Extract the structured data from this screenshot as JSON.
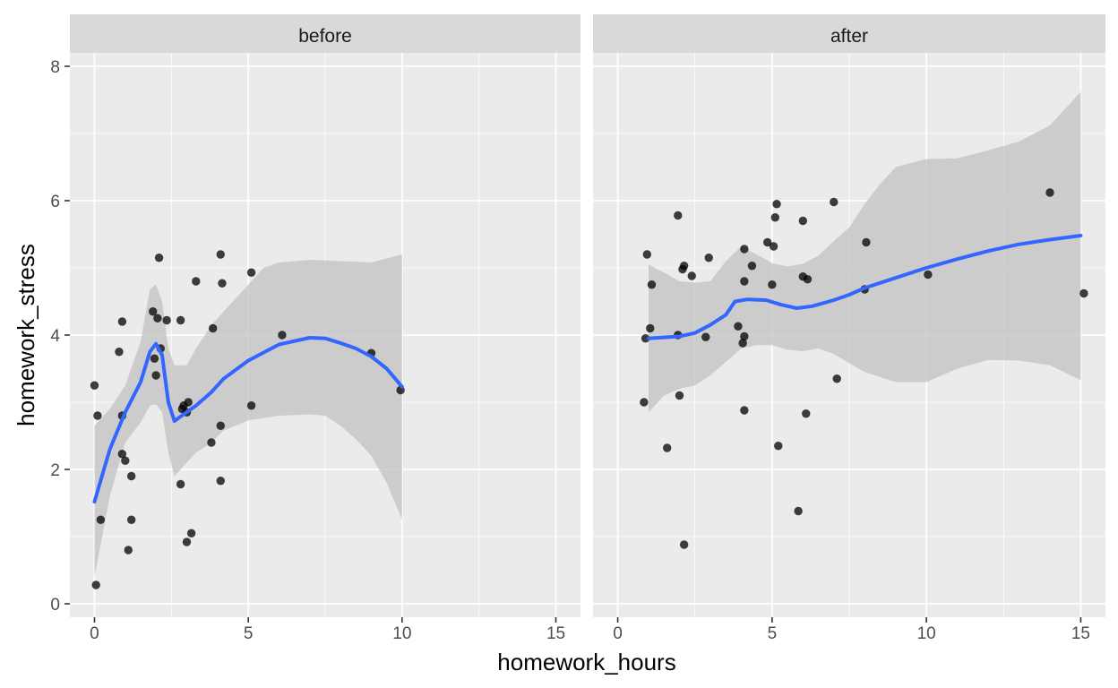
{
  "chart_data": {
    "type": "scatter",
    "xlabel": "homework_hours",
    "ylabel": "homework_stress",
    "xlim": [
      -0.8,
      15.8
    ],
    "ylim": [
      -0.2,
      8.2
    ],
    "x_ticks": [
      0,
      5,
      10,
      15
    ],
    "y_ticks": [
      0,
      2,
      4,
      6,
      8
    ],
    "grid": true,
    "legend": "none",
    "colors": {
      "panel_bg": "#ebebeb",
      "strip_bg": "#d9d9d9",
      "grid": "#ffffff",
      "points": "#000000",
      "smooth_line": "#3366ff",
      "ribbon": "#bfbfbf"
    },
    "panels": [
      {
        "strip": "before",
        "points": [
          {
            "x": 0.0,
            "y": 3.25
          },
          {
            "x": 0.1,
            "y": 2.8
          },
          {
            "x": 0.05,
            "y": 0.28
          },
          {
            "x": 0.2,
            "y": 1.25
          },
          {
            "x": 0.8,
            "y": 3.75
          },
          {
            "x": 0.9,
            "y": 4.2
          },
          {
            "x": 0.9,
            "y": 2.8
          },
          {
            "x": 0.9,
            "y": 2.23
          },
          {
            "x": 1.0,
            "y": 2.13
          },
          {
            "x": 1.1,
            "y": 0.8
          },
          {
            "x": 1.2,
            "y": 1.9
          },
          {
            "x": 1.2,
            "y": 1.25
          },
          {
            "x": 1.9,
            "y": 4.35
          },
          {
            "x": 1.95,
            "y": 3.65
          },
          {
            "x": 2.0,
            "y": 3.4
          },
          {
            "x": 2.05,
            "y": 4.25
          },
          {
            "x": 2.1,
            "y": 5.15
          },
          {
            "x": 2.15,
            "y": 3.8
          },
          {
            "x": 2.35,
            "y": 4.22
          },
          {
            "x": 2.8,
            "y": 4.22
          },
          {
            "x": 2.8,
            "y": 1.78
          },
          {
            "x": 2.85,
            "y": 2.9
          },
          {
            "x": 2.9,
            "y": 2.95
          },
          {
            "x": 3.0,
            "y": 2.85
          },
          {
            "x": 3.05,
            "y": 3.0
          },
          {
            "x": 3.0,
            "y": 0.92
          },
          {
            "x": 3.15,
            "y": 1.05
          },
          {
            "x": 3.3,
            "y": 4.8
          },
          {
            "x": 3.8,
            "y": 2.4
          },
          {
            "x": 3.85,
            "y": 4.1
          },
          {
            "x": 4.1,
            "y": 5.2
          },
          {
            "x": 4.1,
            "y": 2.65
          },
          {
            "x": 4.1,
            "y": 1.83
          },
          {
            "x": 4.15,
            "y": 4.77
          },
          {
            "x": 5.1,
            "y": 4.93
          },
          {
            "x": 5.1,
            "y": 2.95
          },
          {
            "x": 6.1,
            "y": 4.0
          },
          {
            "x": 9.0,
            "y": 3.73
          },
          {
            "x": 9.95,
            "y": 3.18
          }
        ],
        "smooth": [
          {
            "x": 0.0,
            "y": 1.52
          },
          {
            "x": 0.5,
            "y": 2.3
          },
          {
            "x": 1.0,
            "y": 2.85
          },
          {
            "x": 1.5,
            "y": 3.3
          },
          {
            "x": 1.8,
            "y": 3.75
          },
          {
            "x": 2.0,
            "y": 3.87
          },
          {
            "x": 2.2,
            "y": 3.7
          },
          {
            "x": 2.4,
            "y": 3.0
          },
          {
            "x": 2.6,
            "y": 2.72
          },
          {
            "x": 2.9,
            "y": 2.82
          },
          {
            "x": 3.3,
            "y": 2.95
          },
          {
            "x": 3.8,
            "y": 3.15
          },
          {
            "x": 4.2,
            "y": 3.35
          },
          {
            "x": 5.0,
            "y": 3.62
          },
          {
            "x": 6.0,
            "y": 3.86
          },
          {
            "x": 7.0,
            "y": 3.96
          },
          {
            "x": 7.5,
            "y": 3.95
          },
          {
            "x": 8.0,
            "y": 3.88
          },
          {
            "x": 8.5,
            "y": 3.8
          },
          {
            "x": 9.0,
            "y": 3.68
          },
          {
            "x": 9.5,
            "y": 3.5
          },
          {
            "x": 10.0,
            "y": 3.23
          }
        ],
        "ribbon_upper": [
          {
            "x": 0.0,
            "y": 2.65
          },
          {
            "x": 0.5,
            "y": 2.9
          },
          {
            "x": 1.0,
            "y": 3.25
          },
          {
            "x": 1.5,
            "y": 3.9
          },
          {
            "x": 1.8,
            "y": 4.68
          },
          {
            "x": 2.0,
            "y": 4.75
          },
          {
            "x": 2.2,
            "y": 4.5
          },
          {
            "x": 2.4,
            "y": 3.8
          },
          {
            "x": 2.6,
            "y": 3.55
          },
          {
            "x": 3.0,
            "y": 3.55
          },
          {
            "x": 3.3,
            "y": 3.8
          },
          {
            "x": 3.8,
            "y": 4.15
          },
          {
            "x": 4.2,
            "y": 4.35
          },
          {
            "x": 5.0,
            "y": 4.75
          },
          {
            "x": 5.5,
            "y": 5.0
          },
          {
            "x": 6.0,
            "y": 5.08
          },
          {
            "x": 7.0,
            "y": 5.12
          },
          {
            "x": 8.0,
            "y": 5.1
          },
          {
            "x": 9.0,
            "y": 5.08
          },
          {
            "x": 10.0,
            "y": 5.2
          }
        ],
        "ribbon_lower": [
          {
            "x": 0.0,
            "y": 0.4
          },
          {
            "x": 0.5,
            "y": 1.6
          },
          {
            "x": 1.0,
            "y": 2.4
          },
          {
            "x": 1.5,
            "y": 2.7
          },
          {
            "x": 1.8,
            "y": 2.95
          },
          {
            "x": 2.0,
            "y": 2.97
          },
          {
            "x": 2.2,
            "y": 2.85
          },
          {
            "x": 2.4,
            "y": 2.25
          },
          {
            "x": 2.6,
            "y": 1.9
          },
          {
            "x": 2.9,
            "y": 2.05
          },
          {
            "x": 3.3,
            "y": 2.25
          },
          {
            "x": 3.8,
            "y": 2.4
          },
          {
            "x": 4.2,
            "y": 2.58
          },
          {
            "x": 5.0,
            "y": 2.73
          },
          {
            "x": 6.0,
            "y": 2.8
          },
          {
            "x": 7.0,
            "y": 2.82
          },
          {
            "x": 7.5,
            "y": 2.8
          },
          {
            "x": 8.0,
            "y": 2.65
          },
          {
            "x": 8.5,
            "y": 2.45
          },
          {
            "x": 9.0,
            "y": 2.2
          },
          {
            "x": 9.5,
            "y": 1.8
          },
          {
            "x": 10.0,
            "y": 1.25
          }
        ]
      },
      {
        "strip": "after",
        "points": [
          {
            "x": 0.85,
            "y": 3.0
          },
          {
            "x": 0.9,
            "y": 3.95
          },
          {
            "x": 0.95,
            "y": 5.2
          },
          {
            "x": 1.05,
            "y": 4.1
          },
          {
            "x": 1.1,
            "y": 4.75
          },
          {
            "x": 1.6,
            "y": 2.32
          },
          {
            "x": 1.95,
            "y": 5.78
          },
          {
            "x": 1.95,
            "y": 4.0
          },
          {
            "x": 2.0,
            "y": 3.1
          },
          {
            "x": 2.1,
            "y": 4.98
          },
          {
            "x": 2.15,
            "y": 5.03
          },
          {
            "x": 2.15,
            "y": 0.88
          },
          {
            "x": 2.4,
            "y": 4.88
          },
          {
            "x": 2.85,
            "y": 3.97
          },
          {
            "x": 2.95,
            "y": 5.15
          },
          {
            "x": 3.9,
            "y": 4.13
          },
          {
            "x": 4.05,
            "y": 3.88
          },
          {
            "x": 4.1,
            "y": 2.88
          },
          {
            "x": 4.1,
            "y": 3.98
          },
          {
            "x": 4.1,
            "y": 5.28
          },
          {
            "x": 4.1,
            "y": 4.8
          },
          {
            "x": 4.35,
            "y": 5.03
          },
          {
            "x": 4.85,
            "y": 5.38
          },
          {
            "x": 5.0,
            "y": 4.75
          },
          {
            "x": 5.05,
            "y": 5.32
          },
          {
            "x": 5.1,
            "y": 5.75
          },
          {
            "x": 5.15,
            "y": 5.95
          },
          {
            "x": 5.2,
            "y": 2.35
          },
          {
            "x": 5.85,
            "y": 1.38
          },
          {
            "x": 6.0,
            "y": 4.87
          },
          {
            "x": 6.0,
            "y": 5.7
          },
          {
            "x": 6.1,
            "y": 2.83
          },
          {
            "x": 6.15,
            "y": 4.83
          },
          {
            "x": 7.0,
            "y": 5.98
          },
          {
            "x": 7.1,
            "y": 3.35
          },
          {
            "x": 8.0,
            "y": 4.68
          },
          {
            "x": 8.05,
            "y": 5.38
          },
          {
            "x": 10.05,
            "y": 4.9
          },
          {
            "x": 14.0,
            "y": 6.12
          },
          {
            "x": 15.1,
            "y": 4.62
          }
        ],
        "smooth": [
          {
            "x": 1.0,
            "y": 3.95
          },
          {
            "x": 2.0,
            "y": 3.98
          },
          {
            "x": 2.5,
            "y": 4.03
          },
          {
            "x": 3.0,
            "y": 4.15
          },
          {
            "x": 3.5,
            "y": 4.3
          },
          {
            "x": 3.8,
            "y": 4.5
          },
          {
            "x": 4.2,
            "y": 4.53
          },
          {
            "x": 4.8,
            "y": 4.52
          },
          {
            "x": 5.3,
            "y": 4.45
          },
          {
            "x": 5.8,
            "y": 4.4
          },
          {
            "x": 6.3,
            "y": 4.43
          },
          {
            "x": 7.0,
            "y": 4.52
          },
          {
            "x": 7.5,
            "y": 4.6
          },
          {
            "x": 8.0,
            "y": 4.7
          },
          {
            "x": 9.0,
            "y": 4.85
          },
          {
            "x": 10.0,
            "y": 5.0
          },
          {
            "x": 11.0,
            "y": 5.13
          },
          {
            "x": 12.0,
            "y": 5.25
          },
          {
            "x": 13.0,
            "y": 5.35
          },
          {
            "x": 14.0,
            "y": 5.42
          },
          {
            "x": 15.0,
            "y": 5.48
          }
        ],
        "ribbon_upper": [
          {
            "x": 1.0,
            "y": 5.05
          },
          {
            "x": 1.5,
            "y": 4.93
          },
          {
            "x": 2.0,
            "y": 4.8
          },
          {
            "x": 2.5,
            "y": 4.78
          },
          {
            "x": 3.0,
            "y": 4.8
          },
          {
            "x": 3.5,
            "y": 5.1
          },
          {
            "x": 4.0,
            "y": 5.32
          },
          {
            "x": 4.5,
            "y": 5.2
          },
          {
            "x": 5.0,
            "y": 5.07
          },
          {
            "x": 5.5,
            "y": 5.02
          },
          {
            "x": 6.0,
            "y": 5.06
          },
          {
            "x": 6.5,
            "y": 5.18
          },
          {
            "x": 7.0,
            "y": 5.4
          },
          {
            "x": 7.5,
            "y": 5.6
          },
          {
            "x": 8.0,
            "y": 5.95
          },
          {
            "x": 8.5,
            "y": 6.25
          },
          {
            "x": 9.0,
            "y": 6.5
          },
          {
            "x": 10.0,
            "y": 6.62
          },
          {
            "x": 11.0,
            "y": 6.63
          },
          {
            "x": 12.0,
            "y": 6.75
          },
          {
            "x": 13.0,
            "y": 6.88
          },
          {
            "x": 14.0,
            "y": 7.12
          },
          {
            "x": 15.0,
            "y": 7.62
          }
        ],
        "ribbon_lower": [
          {
            "x": 1.0,
            "y": 2.85
          },
          {
            "x": 1.5,
            "y": 3.1
          },
          {
            "x": 2.0,
            "y": 3.2
          },
          {
            "x": 2.5,
            "y": 3.25
          },
          {
            "x": 3.0,
            "y": 3.4
          },
          {
            "x": 3.5,
            "y": 3.6
          },
          {
            "x": 4.0,
            "y": 3.8
          },
          {
            "x": 4.5,
            "y": 3.85
          },
          {
            "x": 5.0,
            "y": 3.85
          },
          {
            "x": 5.5,
            "y": 3.78
          },
          {
            "x": 6.0,
            "y": 3.76
          },
          {
            "x": 6.5,
            "y": 3.8
          },
          {
            "x": 7.0,
            "y": 3.72
          },
          {
            "x": 7.5,
            "y": 3.58
          },
          {
            "x": 8.0,
            "y": 3.45
          },
          {
            "x": 9.0,
            "y": 3.3
          },
          {
            "x": 10.0,
            "y": 3.3
          },
          {
            "x": 11.0,
            "y": 3.5
          },
          {
            "x": 12.0,
            "y": 3.63
          },
          {
            "x": 13.0,
            "y": 3.62
          },
          {
            "x": 14.0,
            "y": 3.55
          },
          {
            "x": 15.0,
            "y": 3.33
          }
        ]
      }
    ]
  }
}
